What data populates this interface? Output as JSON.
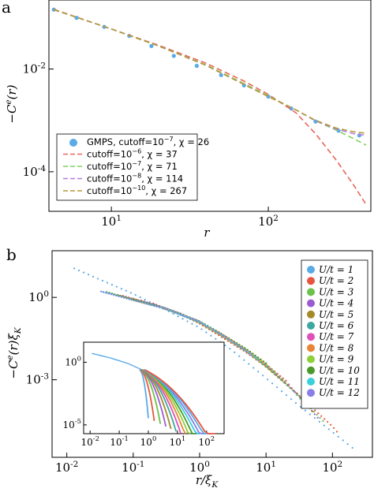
{
  "panels": {
    "a": {
      "letter": "a"
    },
    "b": {
      "letter": "b"
    }
  },
  "chart_data": [
    {
      "type": "line",
      "panel": "a",
      "xlabel": "r",
      "ylabel": "−C^e(r)",
      "xscale": "log",
      "yscale": "log",
      "xlim": [
        4,
        450
      ],
      "ylim": [
        1.7e-05,
        0.22
      ],
      "x_ticks": [
        10,
        100
      ],
      "x_tick_labels": [
        "10^1",
        "10^2"
      ],
      "y_ticks": [
        0.01,
        0.0001
      ],
      "y_tick_labels": [
        "10^-2",
        "10^-4"
      ],
      "legend_position": "lower-left",
      "series": [
        {
          "name": "GMPS, cutoff=10^-7, χ = 26",
          "style": "points",
          "color": "#5aaae8",
          "x": [
            4.3,
            6,
            9,
            13,
            18,
            25,
            35,
            50,
            70,
            100,
            140,
            200,
            280,
            380
          ],
          "y": [
            0.143,
            0.099,
            0.066,
            0.044,
            0.028,
            0.018,
            0.0115,
            0.0076,
            0.0048,
            0.0029,
            0.0017,
            0.00095,
            0.00063,
            0.00051
          ]
        },
        {
          "name": "cutoff=10^-6, χ = 37",
          "style": "dashed",
          "color": "#e8665a",
          "x": [
            4.3,
            10,
            20,
            40,
            70,
            100,
            150,
            200,
            270,
            350,
            420
          ],
          "y": [
            0.145,
            0.06,
            0.029,
            0.013,
            0.0058,
            0.0032,
            0.0014,
            0.00055,
            0.00017,
            5.5e-05,
            2.3e-05
          ]
        },
        {
          "name": "cutoff=10^-7, χ = 71",
          "style": "dashed",
          "color": "#7ed35a",
          "x": [
            4.3,
            10,
            20,
            40,
            70,
            100,
            150,
            200,
            270,
            350,
            420
          ],
          "y": [
            0.143,
            0.06,
            0.028,
            0.012,
            0.0052,
            0.003,
            0.0016,
            0.00098,
            0.00065,
            0.00044,
            0.00033
          ]
        },
        {
          "name": "cutoff=10^-8, χ = 114",
          "style": "dashed",
          "color": "#b77ee6",
          "x": [
            4.3,
            10,
            20,
            40,
            70,
            100,
            150,
            200,
            270,
            350,
            420
          ],
          "y": [
            0.143,
            0.06,
            0.028,
            0.0118,
            0.005,
            0.0029,
            0.0016,
            0.00098,
            0.00068,
            0.00055,
            0.00051
          ]
        },
        {
          "name": "cutoff=10^-10, χ = 267",
          "style": "dashed",
          "color": "#b59a3a",
          "x": [
            4.3,
            10,
            20,
            40,
            70,
            100,
            150,
            200,
            270,
            350,
            420
          ],
          "y": [
            0.143,
            0.06,
            0.028,
            0.0118,
            0.005,
            0.0029,
            0.0016,
            0.001,
            0.00071,
            0.0006,
            0.00056
          ]
        }
      ]
    },
    {
      "type": "scatter",
      "panel": "b",
      "xlabel": "r/ξ_K",
      "ylabel": "−C^e(r)ξ_K",
      "xscale": "log",
      "yscale": "log",
      "xlim": [
        0.006,
        400
      ],
      "ylim": [
        1.5e-06,
        50
      ],
      "x_ticks": [
        0.01,
        0.1,
        1,
        10,
        100
      ],
      "x_tick_labels": [
        "10^-2",
        "10^-1",
        "10^0",
        "10^1",
        "10^2"
      ],
      "y_ticks": [
        1,
        0.001
      ],
      "y_tick_labels": [
        "10^0",
        "10^-3"
      ],
      "legend_position": "top-right",
      "series": [
        {
          "name": "U/t = 1",
          "color": "#5aaae8",
          "x": [
            0.011,
            0.03,
            0.1,
            0.3,
            1,
            3,
            10,
            30,
            100,
            200
          ],
          "y": [
            13,
            4.5,
            1.3,
            0.35,
            0.075,
            0.012,
            0.0011,
            0.00012,
            1.2e-05,
            3.2e-06
          ]
        },
        {
          "name": "U/t = 2",
          "color": "#e8553e",
          "x": [
            0.2,
            0.5,
            1,
            2,
            5,
            10,
            30,
            100,
            130
          ],
          "y": [
            0.6,
            0.25,
            0.11,
            0.04,
            0.01,
            0.003,
            0.0003,
            2e-05,
            9.5e-06
          ]
        },
        {
          "name": "U/t = 3",
          "color": "#6cc24a",
          "x": [
            0.15,
            0.5,
            1,
            2,
            5,
            10,
            30,
            80
          ],
          "y": [
            0.7,
            0.25,
            0.12,
            0.045,
            0.011,
            0.003,
            0.0003,
            2.5e-05
          ]
        },
        {
          "name": "U/t = 4",
          "color": "#9b5cd3",
          "x": [
            0.12,
            0.5,
            1,
            2,
            5,
            10,
            30,
            60
          ],
          "y": [
            0.8,
            0.26,
            0.12,
            0.045,
            0.011,
            0.003,
            0.00028,
            4e-05
          ]
        },
        {
          "name": "U/t = 5",
          "color": "#a48a2a",
          "x": [
            0.1,
            0.5,
            1,
            2,
            5,
            10,
            30,
            50
          ],
          "y": [
            0.9,
            0.26,
            0.13,
            0.05,
            0.012,
            0.0032,
            0.0003,
            7e-05
          ]
        },
        {
          "name": "U/t = 6",
          "color": "#3ea7a0",
          "x": [
            0.08,
            0.3,
            1,
            2,
            5,
            10,
            20,
            40
          ],
          "y": [
            1.0,
            0.4,
            0.13,
            0.05,
            0.012,
            0.0035,
            0.00085,
            0.00012
          ]
        },
        {
          "name": "U/t = 7",
          "color": "#e050b8",
          "x": [
            0.07,
            0.3,
            1,
            2,
            5,
            10,
            20,
            30
          ],
          "y": [
            1.1,
            0.4,
            0.13,
            0.05,
            0.012,
            0.0035,
            0.0009,
            0.00025
          ]
        },
        {
          "name": "U/t = 8",
          "color": "#e7863a",
          "x": [
            0.06,
            0.3,
            1,
            2,
            5,
            10,
            20
          ],
          "y": [
            1.2,
            0.4,
            0.13,
            0.05,
            0.013,
            0.0037,
            0.0009
          ]
        },
        {
          "name": "U/t = 9",
          "color": "#8ecf3a",
          "x": [
            0.05,
            0.3,
            1,
            2,
            5,
            10,
            15
          ],
          "y": [
            1.3,
            0.4,
            0.13,
            0.05,
            0.013,
            0.0038,
            0.0016
          ]
        },
        {
          "name": "U/t = 10",
          "color": "#4a9a2a",
          "x": [
            0.04,
            0.3,
            1,
            2,
            5,
            10
          ],
          "y": [
            1.5,
            0.4,
            0.13,
            0.05,
            0.013,
            0.0039
          ]
        },
        {
          "name": "U/t = 11",
          "color": "#3ad0dc",
          "x": [
            0.035,
            0.3,
            1,
            2,
            4,
            8
          ],
          "y": [
            1.6,
            0.4,
            0.13,
            0.05,
            0.017,
            0.005
          ]
        },
        {
          "name": "U/t = 12",
          "color": "#8a7ee8",
          "x": [
            0.03,
            0.3,
            1,
            2,
            4,
            6
          ],
          "y": [
            1.8,
            0.4,
            0.13,
            0.05,
            0.017,
            0.008
          ]
        }
      ],
      "inset": {
        "xscale": "log",
        "yscale": "log",
        "xlim": [
          0.006,
          400
        ],
        "ylim": [
          2e-06,
          40
        ],
        "x_ticks": [
          0.01,
          0.1,
          1,
          10,
          100
        ],
        "x_tick_labels": [
          "10^-2",
          "10^-1",
          "10^0",
          "10^1",
          "10^2"
        ],
        "y_ticks": [
          1,
          1e-05
        ],
        "y_tick_labels": [
          "10^0",
          "10^-5"
        ],
        "end_x": [
          1,
          1.6,
          2.6,
          4,
          6,
          9,
          13,
          19,
          27,
          40,
          60,
          90,
          140,
          200
        ]
      }
    }
  ]
}
